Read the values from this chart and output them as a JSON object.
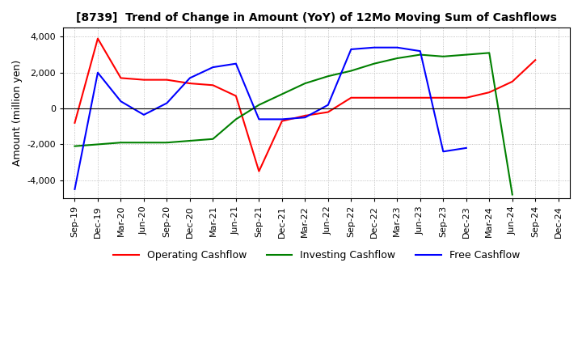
{
  "title": "[8739]  Trend of Change in Amount (YoY) of 12Mo Moving Sum of Cashflows",
  "ylabel": "Amount (million yen)",
  "x_labels": [
    "Sep-19",
    "Dec-19",
    "Mar-20",
    "Jun-20",
    "Sep-20",
    "Dec-20",
    "Mar-21",
    "Jun-21",
    "Sep-21",
    "Dec-21",
    "Mar-22",
    "Jun-22",
    "Sep-22",
    "Dec-22",
    "Mar-23",
    "Jun-23",
    "Sep-23",
    "Dec-23",
    "Mar-24",
    "Jun-24",
    "Sep-24",
    "Dec-24"
  ],
  "operating": [
    -800,
    3900,
    1700,
    1600,
    1600,
    1400,
    1300,
    700,
    -3500,
    -700,
    -400,
    -200,
    600,
    600,
    600,
    600,
    600,
    600,
    900,
    1500,
    2700,
    null
  ],
  "investing": [
    -2100,
    -2000,
    -1900,
    -1900,
    -1900,
    -1800,
    -1700,
    -600,
    200,
    800,
    1400,
    1800,
    2100,
    2500,
    2800,
    3000,
    2900,
    3000,
    3100,
    -4800,
    null,
    null
  ],
  "free": [
    -4500,
    2000,
    400,
    -350,
    300,
    1700,
    2300,
    2500,
    -600,
    -600,
    -500,
    200,
    3300,
    3400,
    3400,
    3200,
    -2400,
    -2200,
    null,
    null,
    null,
    null
  ],
  "ylim": [
    -5000,
    4500
  ],
  "yticks": [
    -4000,
    -2000,
    0,
    2000,
    4000
  ],
  "operating_color": "#ff0000",
  "investing_color": "#008000",
  "free_color": "#0000ff",
  "bg_color": "#ffffff",
  "grid_color": "#b0b0b0"
}
